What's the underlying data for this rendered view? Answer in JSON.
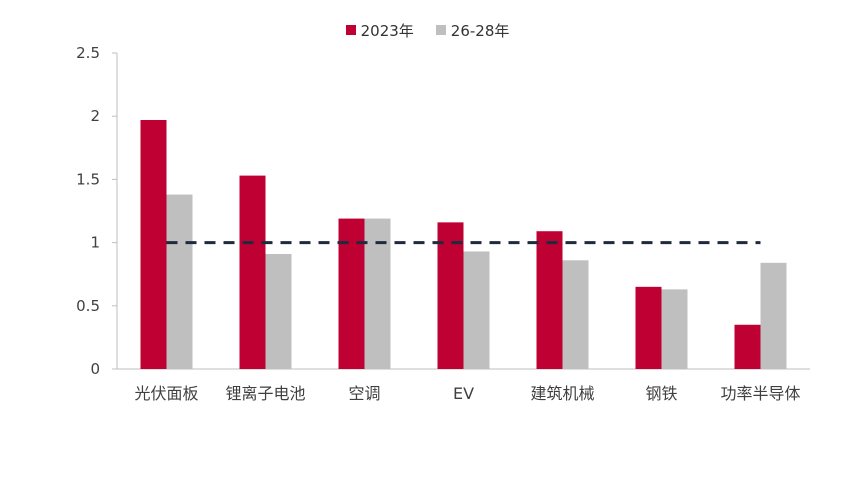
{
  "chart_data": {
    "type": "bar",
    "categories": [
      "光伏面板",
      "锂离子电池",
      "空调",
      "EV",
      "建筑机械",
      "钢铁",
      "功率半导体"
    ],
    "series": [
      {
        "name": "2023年",
        "color": "#BE0032",
        "values": [
          1.97,
          1.53,
          1.19,
          1.16,
          1.09,
          0.65,
          0.35
        ]
      },
      {
        "name": "26-28年",
        "color": "#BFBFBF",
        "values": [
          1.38,
          0.91,
          1.19,
          0.93,
          0.86,
          0.63,
          0.84
        ]
      }
    ],
    "reference_line": {
      "value": 1,
      "style": "dashed",
      "color": "#1F2A3C"
    },
    "yticks": [
      "0",
      "0.5",
      "1",
      "1.5",
      "2",
      "2.5"
    ],
    "ylim": [
      0,
      2.5
    ],
    "legend_position": "top",
    "grid": false,
    "title": "",
    "xlabel": "",
    "ylabel": ""
  }
}
